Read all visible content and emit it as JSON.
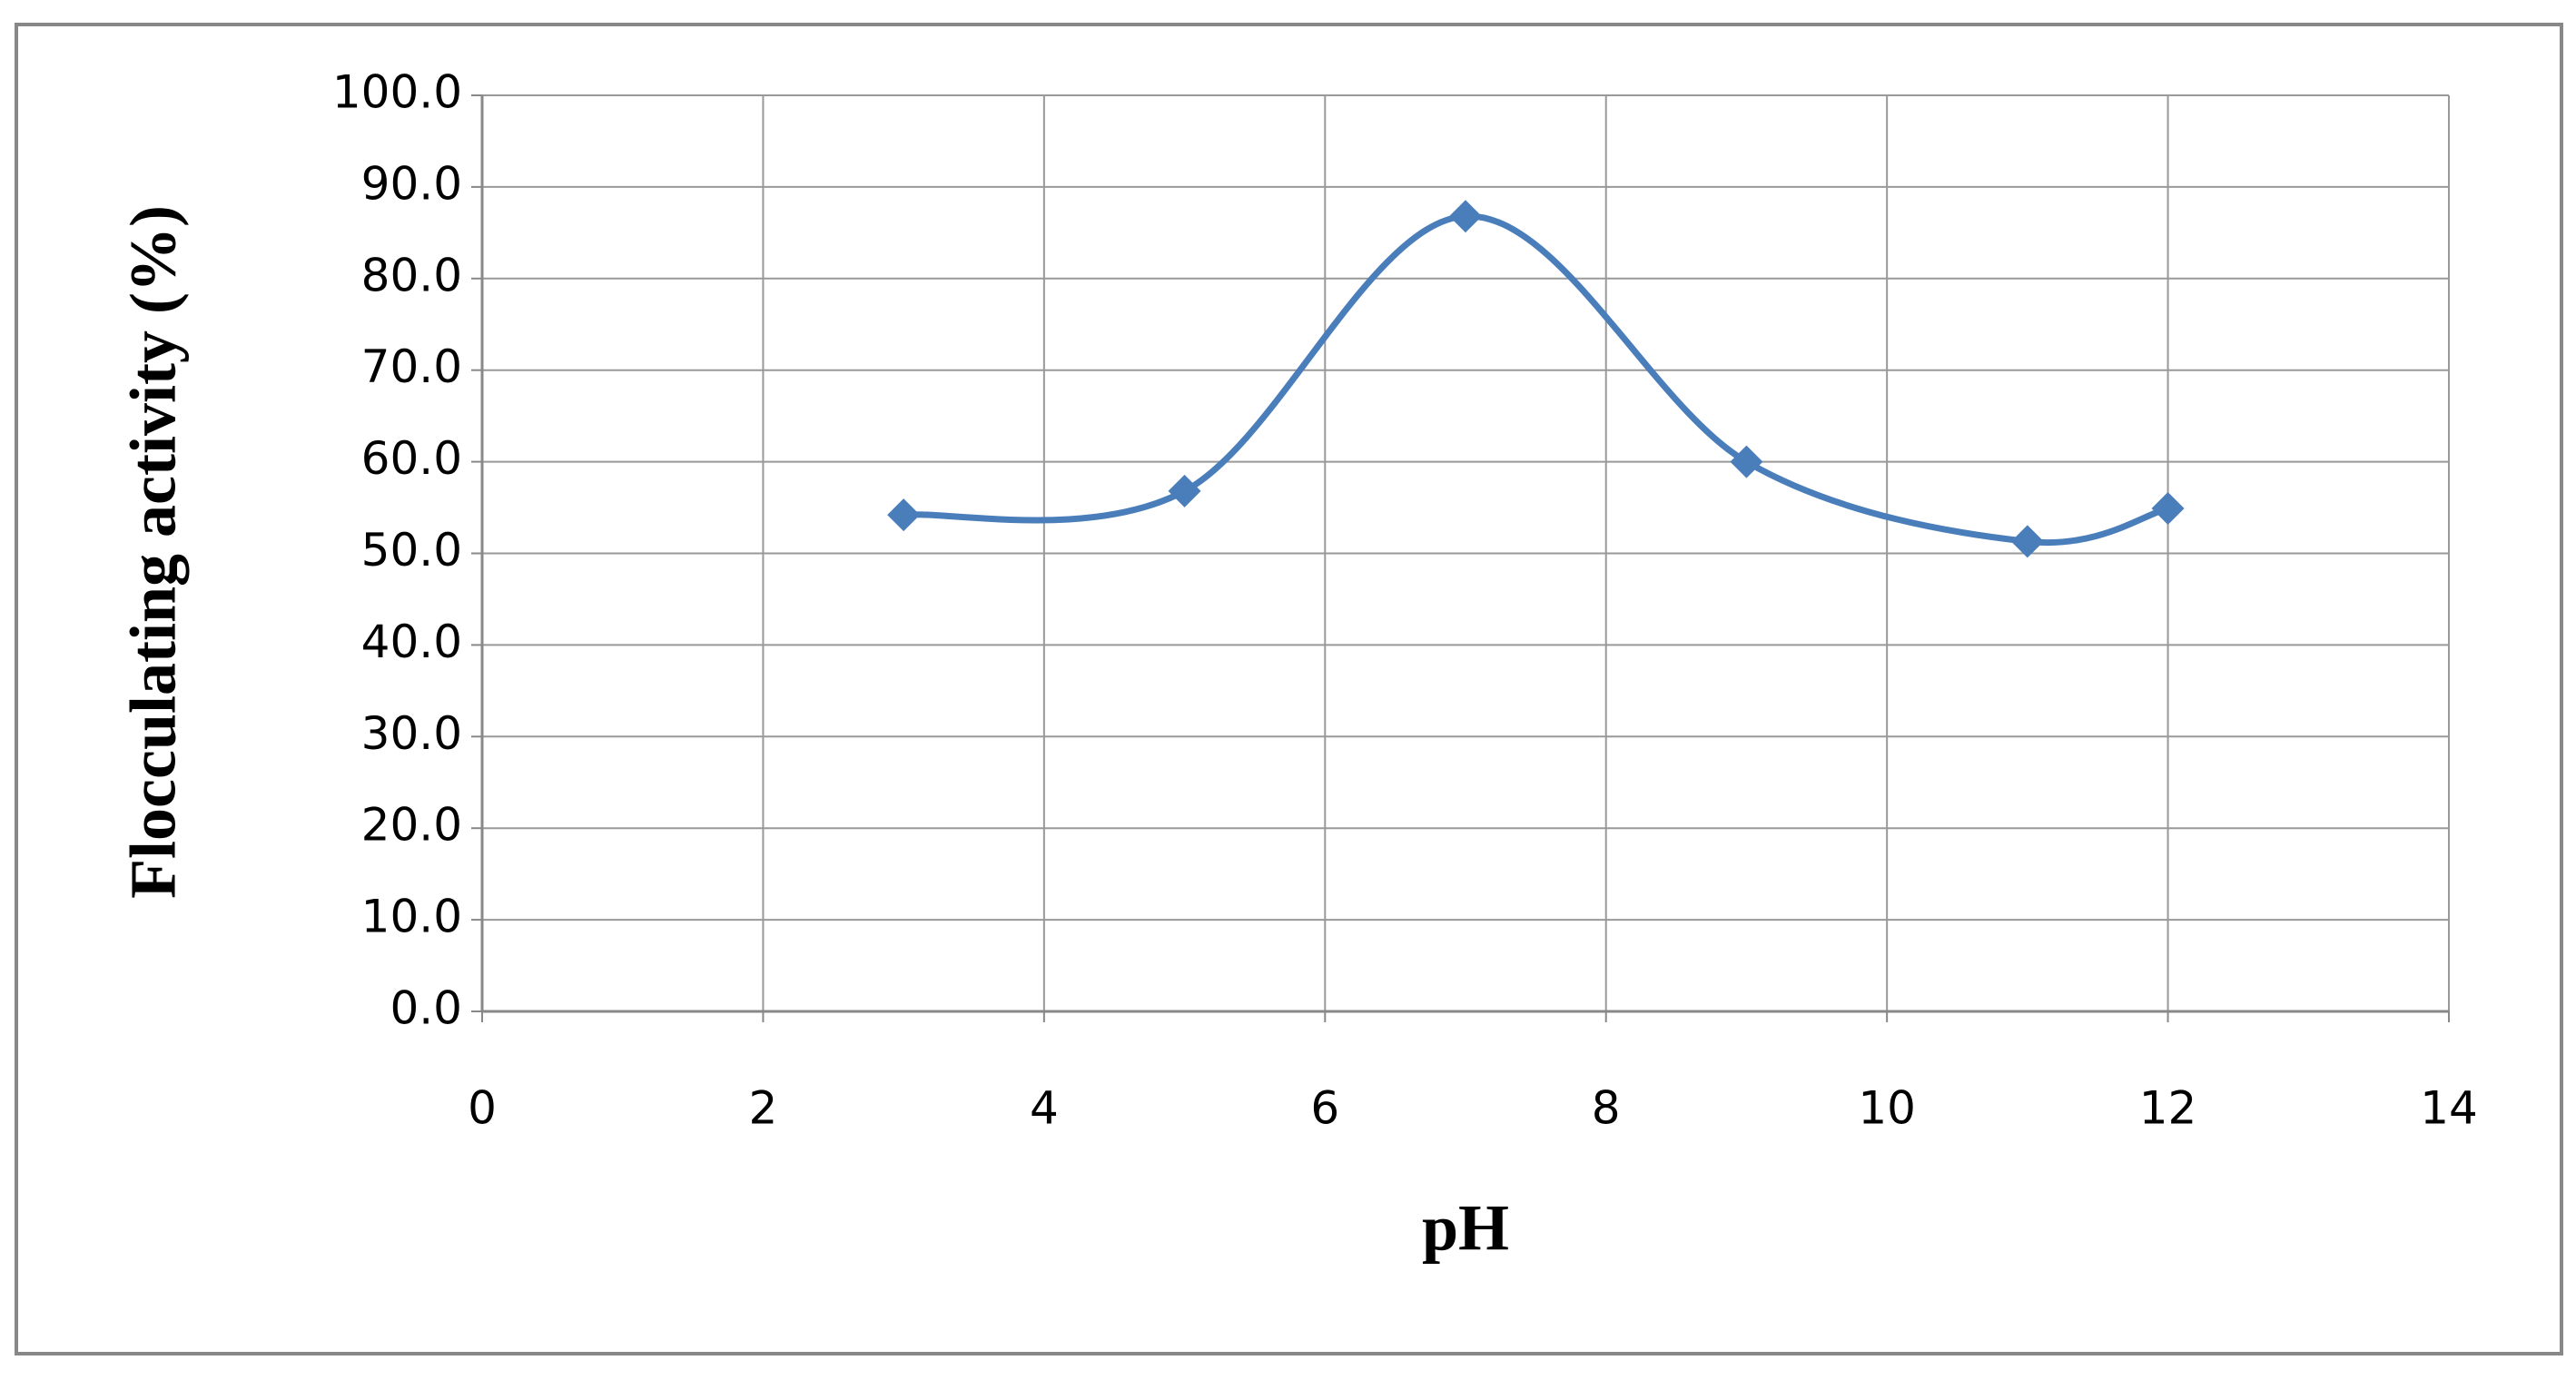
{
  "chart_data": {
    "type": "scatter",
    "x_label": "pH",
    "y_label": "Flocculating activity (%)",
    "x": [
      3,
      5,
      7,
      9,
      11,
      12
    ],
    "series": [
      {
        "color": "#4a7ebb",
        "values": [
          54.2,
          56.8,
          86.8,
          60.0,
          51.3,
          54.9
        ]
      }
    ],
    "xlim": [
      0,
      14
    ],
    "xticks": [
      0,
      2,
      4,
      6,
      8,
      10,
      12,
      14
    ],
    "ylim": [
      0,
      100
    ],
    "yticks": [
      {
        "value": 0,
        "label": "0.0"
      },
      {
        "value": 10,
        "label": "10.0"
      },
      {
        "value": 20,
        "label": "20.0"
      },
      {
        "value": 30,
        "label": "30.0"
      },
      {
        "value": 40,
        "label": "40.0"
      },
      {
        "value": 50,
        "label": "50.0"
      },
      {
        "value": 60,
        "label": "60.0"
      },
      {
        "value": 70,
        "label": "70.0"
      },
      {
        "value": 80,
        "label": "80.0"
      },
      {
        "value": 90,
        "label": "90.0"
      },
      {
        "value": 100,
        "label": "100.0"
      }
    ],
    "grid": true,
    "smooth": true
  }
}
